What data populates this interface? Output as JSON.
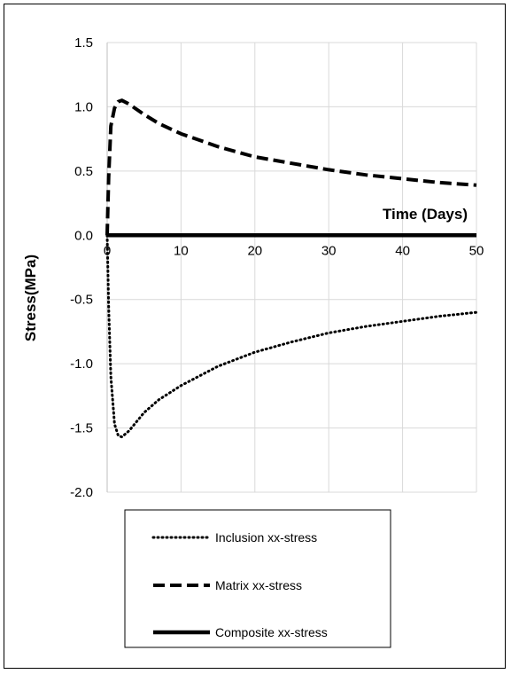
{
  "chart_data": {
    "type": "line",
    "title": "",
    "xlabel": "Time (Days)",
    "ylabel": "Stress(MPa)",
    "xlim": [
      0,
      50
    ],
    "ylim": [
      -2.0,
      1.5
    ],
    "x_ticks": [
      "0",
      "10",
      "20",
      "30",
      "40",
      "50"
    ],
    "y_ticks": [
      "1.5",
      "1.0",
      "0.5",
      "0.0",
      "-0.5",
      "-1.0",
      "-1.5",
      "-2.0"
    ],
    "grid": true,
    "legend_position": "bottom",
    "series": [
      {
        "name": "Inclusion xx-stress",
        "style": "dotted",
        "color": "#000000",
        "x": [
          0,
          0.2,
          0.5,
          1,
          1.5,
          2,
          3,
          4,
          5,
          7,
          10,
          15,
          20,
          25,
          30,
          35,
          40,
          45,
          50
        ],
        "y": [
          0,
          -0.55,
          -1.1,
          -1.47,
          -1.56,
          -1.57,
          -1.52,
          -1.45,
          -1.38,
          -1.28,
          -1.17,
          -1.02,
          -0.91,
          -0.83,
          -0.76,
          -0.71,
          -0.67,
          -0.63,
          -0.6
        ]
      },
      {
        "name": "Matrix xx-stress",
        "style": "dashed",
        "color": "#000000",
        "x": [
          0,
          0.2,
          0.5,
          1,
          1.5,
          2,
          3,
          4,
          5,
          7,
          10,
          15,
          20,
          25,
          30,
          35,
          40,
          45,
          50
        ],
        "y": [
          0,
          0.45,
          0.85,
          0.99,
          1.04,
          1.05,
          1.02,
          0.98,
          0.94,
          0.87,
          0.79,
          0.69,
          0.61,
          0.56,
          0.51,
          0.47,
          0.44,
          0.41,
          0.39
        ]
      },
      {
        "name": "Composite xx-stress",
        "style": "solid",
        "color": "#000000",
        "x": [
          0,
          50
        ],
        "y": [
          0,
          0
        ]
      }
    ]
  }
}
